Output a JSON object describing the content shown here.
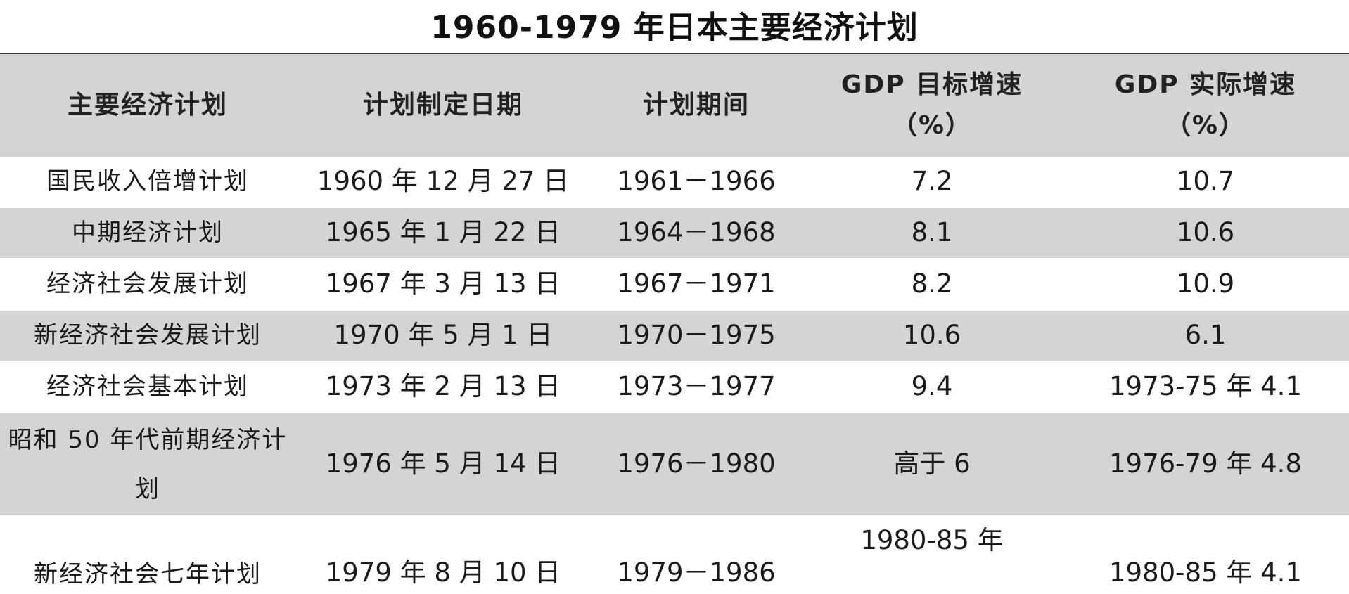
{
  "title": "1960-1979 年日本主要经济计划",
  "headers": {
    "plan": "主要经济计划",
    "date": "计划制定日期",
    "period": "计划期间",
    "target_line1": "GDP 目标增速",
    "target_line2": "（%）",
    "actual_line1": "GDP 实际增速",
    "actual_line2": "（%）"
  },
  "rows": [
    {
      "plan": "国民收入倍增计划",
      "date": "1960 年 12 月 27 日",
      "period": "1961－1966",
      "target": "7.2",
      "actual": "10.7"
    },
    {
      "plan": "中期经济计划",
      "date": "1965 年 1 月 22 日",
      "period": "1964－1968",
      "target": "8.1",
      "actual": "10.6"
    },
    {
      "plan": "经济社会发展计划",
      "date": "1967 年 3 月 13 日",
      "period": "1967－1971",
      "target": "8.2",
      "actual": "10.9"
    },
    {
      "plan": "新经济社会发展计划",
      "date": "1970 年 5 月 1 日",
      "period": "1970－1975",
      "target": "10.6",
      "actual": "6.1"
    },
    {
      "plan": "经济社会基本计划",
      "date": "1973 年 2 月 13 日",
      "period": "1973－1977",
      "target": "9.4",
      "actual": "1973-75 年 4.1"
    },
    {
      "plan_line1": "昭和 50 年代前期经济计",
      "plan_line2": "划",
      "date": "1976 年 5 月 14 日",
      "period": "1976－1980",
      "target": "高于 6",
      "actual": "1976-79 年 4.8"
    },
    {
      "plan": "新经济社会七年计划",
      "date": "1979 年 8 月 10 日",
      "period": "1979－1986",
      "target": "1980-85 年",
      "actual": "1980-85 年 4.1"
    }
  ]
}
